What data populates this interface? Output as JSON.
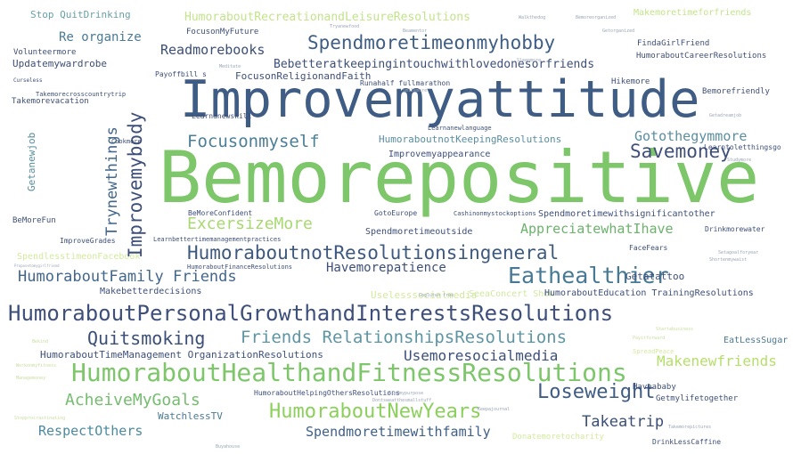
{
  "cloud": {
    "words": [
      {
        "text": "Bemorepositive",
        "color": "#7dc66a"
      },
      {
        "text": "Improvemyattitude",
        "color": "#3f5c85"
      },
      {
        "text": "HumoraboutPersonalGrowthandInterestsResolutions",
        "color": "#3d4f7a"
      },
      {
        "text": "HumoraboutHealthandFitnessResolutions",
        "color": "#7dc66a"
      },
      {
        "text": "HumoraboutnotResolutionsingeneral",
        "color": "#3e5980"
      },
      {
        "text": "Eathealthier",
        "color": "#477995"
      },
      {
        "text": "Spendmoretimeonmyhobby",
        "color": "#3e5e86"
      },
      {
        "text": "Savemoney",
        "color": "#3d4f7a"
      },
      {
        "text": "Focusonmyself",
        "color": "#4b7f98"
      },
      {
        "text": "Gotothegymmore",
        "color": "#5a8ea0"
      },
      {
        "text": "HumoraboutNewYears",
        "color": "#8cd05c"
      },
      {
        "text": "Loseweight",
        "color": "#3f5c85"
      },
      {
        "text": "Quitsmoking",
        "color": "#3b4f77"
      },
      {
        "text": "Friends RelationshipsResolutions",
        "color": "#5e95a4"
      },
      {
        "text": "HumoraboutFamily Friends",
        "color": "#42668c"
      },
      {
        "text": "ExcersizeMore",
        "color": "#a8d870"
      },
      {
        "text": "AppreciatewhatIhave",
        "color": "#6cb26c"
      },
      {
        "text": "AcheiveMyGoals",
        "color": "#74bd6e"
      },
      {
        "text": "Takeatrip",
        "color": "#3b4f77"
      },
      {
        "text": "RespectOthers",
        "color": "#4c8aa0"
      },
      {
        "text": "Spendmoretimewithfamily",
        "color": "#3f6088"
      },
      {
        "text": "Makenewfriends",
        "color": "#b5df6a"
      },
      {
        "text": "Usemoresocialmedia",
        "color": "#3d4f7a"
      },
      {
        "text": "Havemorepatience",
        "color": "#3d4f7a"
      },
      {
        "text": "Readmorebooks",
        "color": "#3b4f77"
      },
      {
        "text": "Re organize",
        "color": "#4a7a95"
      },
      {
        "text": "Improvemybody",
        "color": "#3d4f7a"
      },
      {
        "text": "Trynewthings",
        "color": "#42668c"
      },
      {
        "text": "Getanewjob",
        "color": "#558fa0"
      },
      {
        "text": "HumoraboutRecreationandLeisureResolutions",
        "color": "#c2e48a"
      },
      {
        "text": "Makemoretimeforfriends",
        "color": "#c2e48a"
      },
      {
        "text": "Stop QuitDrinking",
        "color": "#6aa0a8"
      },
      {
        "text": "Bebetteratkeepingintouchwithlovedonesorfriends",
        "color": "#3d4f7a"
      },
      {
        "text": "FocusonReligionandFaith",
        "color": "#3d4f7a"
      },
      {
        "text": "HumoraboutnotKeepingResolutions",
        "color": "#5a8ea0"
      },
      {
        "text": "Improvemyappearance",
        "color": "#3d4f7a"
      },
      {
        "text": "HumoraboutTimeManagement OrganizationResolutions",
        "color": "#3d4f7a"
      },
      {
        "text": "Uselesssocialmedia",
        "color": "#d2ea9c"
      },
      {
        "text": "SeeaConcert Show",
        "color": "#cfe8a0"
      },
      {
        "text": "Spendmoretimeoutside",
        "color": "#3d4f7a"
      },
      {
        "text": "Makebetterdecisions",
        "color": "#3d4f7a"
      },
      {
        "text": "SpendlesstimeonFacebook",
        "color": "#d2ea9c"
      },
      {
        "text": "Getatattoo",
        "color": "#3d4f7a"
      },
      {
        "text": "HumoraboutEducation TrainingResolutions",
        "color": "#3d4f7a"
      },
      {
        "text": "WatchlessTV",
        "color": "#4a7a95"
      },
      {
        "text": "Spendmoretimewithsignificantother",
        "color": "#3d4f7a"
      },
      {
        "text": "Updatemywardrobe",
        "color": "#3d4f7a"
      },
      {
        "text": "Volunteermore",
        "color": "#3d4f7a"
      },
      {
        "text": "FocusonMyFuture",
        "color": "#3d4f7a"
      },
      {
        "text": "FindaGirlFriend",
        "color": "#3d4f7a"
      },
      {
        "text": "HumoraboutCareerResolutions",
        "color": "#3d4f7a"
      },
      {
        "text": "Takemorevacation",
        "color": "#3d4f7a"
      },
      {
        "text": "Runahalf fullmarathon",
        "color": "#3d4f7a"
      },
      {
        "text": "Hikemore",
        "color": "#3d4f7a"
      },
      {
        "text": "Bemorefriendly",
        "color": "#3d4f7a"
      },
      {
        "text": "Learnanewskill",
        "color": "#3d4f7a"
      },
      {
        "text": "Learnanewlanguage",
        "color": "#3d4f7a"
      },
      {
        "text": "Learntoletthingsgo",
        "color": "#3d4f7a"
      },
      {
        "text": "Cookmore",
        "color": "#3d4f7a"
      },
      {
        "text": "BeMoreFun",
        "color": "#3d4f7a"
      },
      {
        "text": "BeMoreConfident",
        "color": "#3d4f7a"
      },
      {
        "text": "GotoEurope",
        "color": "#3d4f7a"
      },
      {
        "text": "Cashinonmystockoptions",
        "color": "#3d4f7a"
      },
      {
        "text": "Drinkmorewater",
        "color": "#3d4f7a"
      },
      {
        "text": "ImproveGrades",
        "color": "#3d4f7a"
      },
      {
        "text": "Learnbettertimemanagementpractices",
        "color": "#3d4f7a"
      },
      {
        "text": "FaceFears",
        "color": "#3d4f7a"
      },
      {
        "text": "HumoraboutFinanceResolutions",
        "color": "#3d4f7a"
      },
      {
        "text": "EatLessSugar",
        "color": "#4a7a95"
      },
      {
        "text": "HumoraboutHelpingOthersResolutions",
        "color": "#3d4f7a"
      },
      {
        "text": "Haveababy",
        "color": "#3d4f7a"
      },
      {
        "text": "Getmylifetogether",
        "color": "#3d4f7a"
      },
      {
        "text": "Donatemoretocharity",
        "color": "#d2ea9c"
      },
      {
        "text": "DrinkLessCaffine",
        "color": "#3d4f7a"
      },
      {
        "text": "Payoffbill s",
        "color": "#3d4f7a"
      },
      {
        "text": "Takemorecrosscountrytrip",
        "color": "#3d4f7a"
      },
      {
        "text": "Curseless",
        "color": "#3d4f7a"
      },
      {
        "text": "SpreadPeace",
        "color": "#d2ea9c"
      }
    ],
    "tiny_words": [
      {
        "text": "Meditate",
        "color": "#9aa6b8"
      },
      {
        "text": "Bemoreorganized",
        "color": "#9aa6b8"
      },
      {
        "text": "Tryanewfood",
        "color": "#9aa6b8"
      },
      {
        "text": "Beamentor",
        "color": "#9aa6b8"
      },
      {
        "text": "Sleepmore",
        "color": "#9aa6b8"
      },
      {
        "text": "Getadreamjob",
        "color": "#9aa6b8"
      },
      {
        "text": "Studymore",
        "color": "#9aa6b8"
      },
      {
        "text": "Smilemore",
        "color": "#9aa6b8"
      },
      {
        "text": "Gogluten free",
        "color": "#9aa6b8"
      },
      {
        "text": "Startabusiness",
        "color": "#c8e0a0"
      },
      {
        "text": "Dontsweatthesmallstuff",
        "color": "#9aa6b8"
      },
      {
        "text": "Setagoalforyear",
        "color": "#9aa6b8"
      },
      {
        "text": "Shortenmywaist",
        "color": "#9aa6b8"
      },
      {
        "text": "Bekind",
        "color": "#c8e0a0"
      },
      {
        "text": "Workonmyfitness",
        "color": "#c8e0a0"
      },
      {
        "text": "Managemoney",
        "color": "#c8e0a0"
      },
      {
        "text": "Stopprocrastinating",
        "color": "#c8e0a0"
      },
      {
        "text": "Keepajournal",
        "color": "#9aa6b8"
      },
      {
        "text": "Findmypurpose",
        "color": "#9aa6b8"
      },
      {
        "text": "Proposetomygirlfriend",
        "color": "#9aa6b8"
      },
      {
        "text": "Buyahouse",
        "color": "#9aa6b8"
      },
      {
        "text": "Walkthedog",
        "color": "#9aa6b8"
      },
      {
        "text": "Getorganized",
        "color": "#9aa6b8"
      },
      {
        "text": "Payitforward",
        "color": "#c8e0a0"
      },
      {
        "text": "Takemorepictures",
        "color": "#9aa6b8"
      }
    ]
  }
}
